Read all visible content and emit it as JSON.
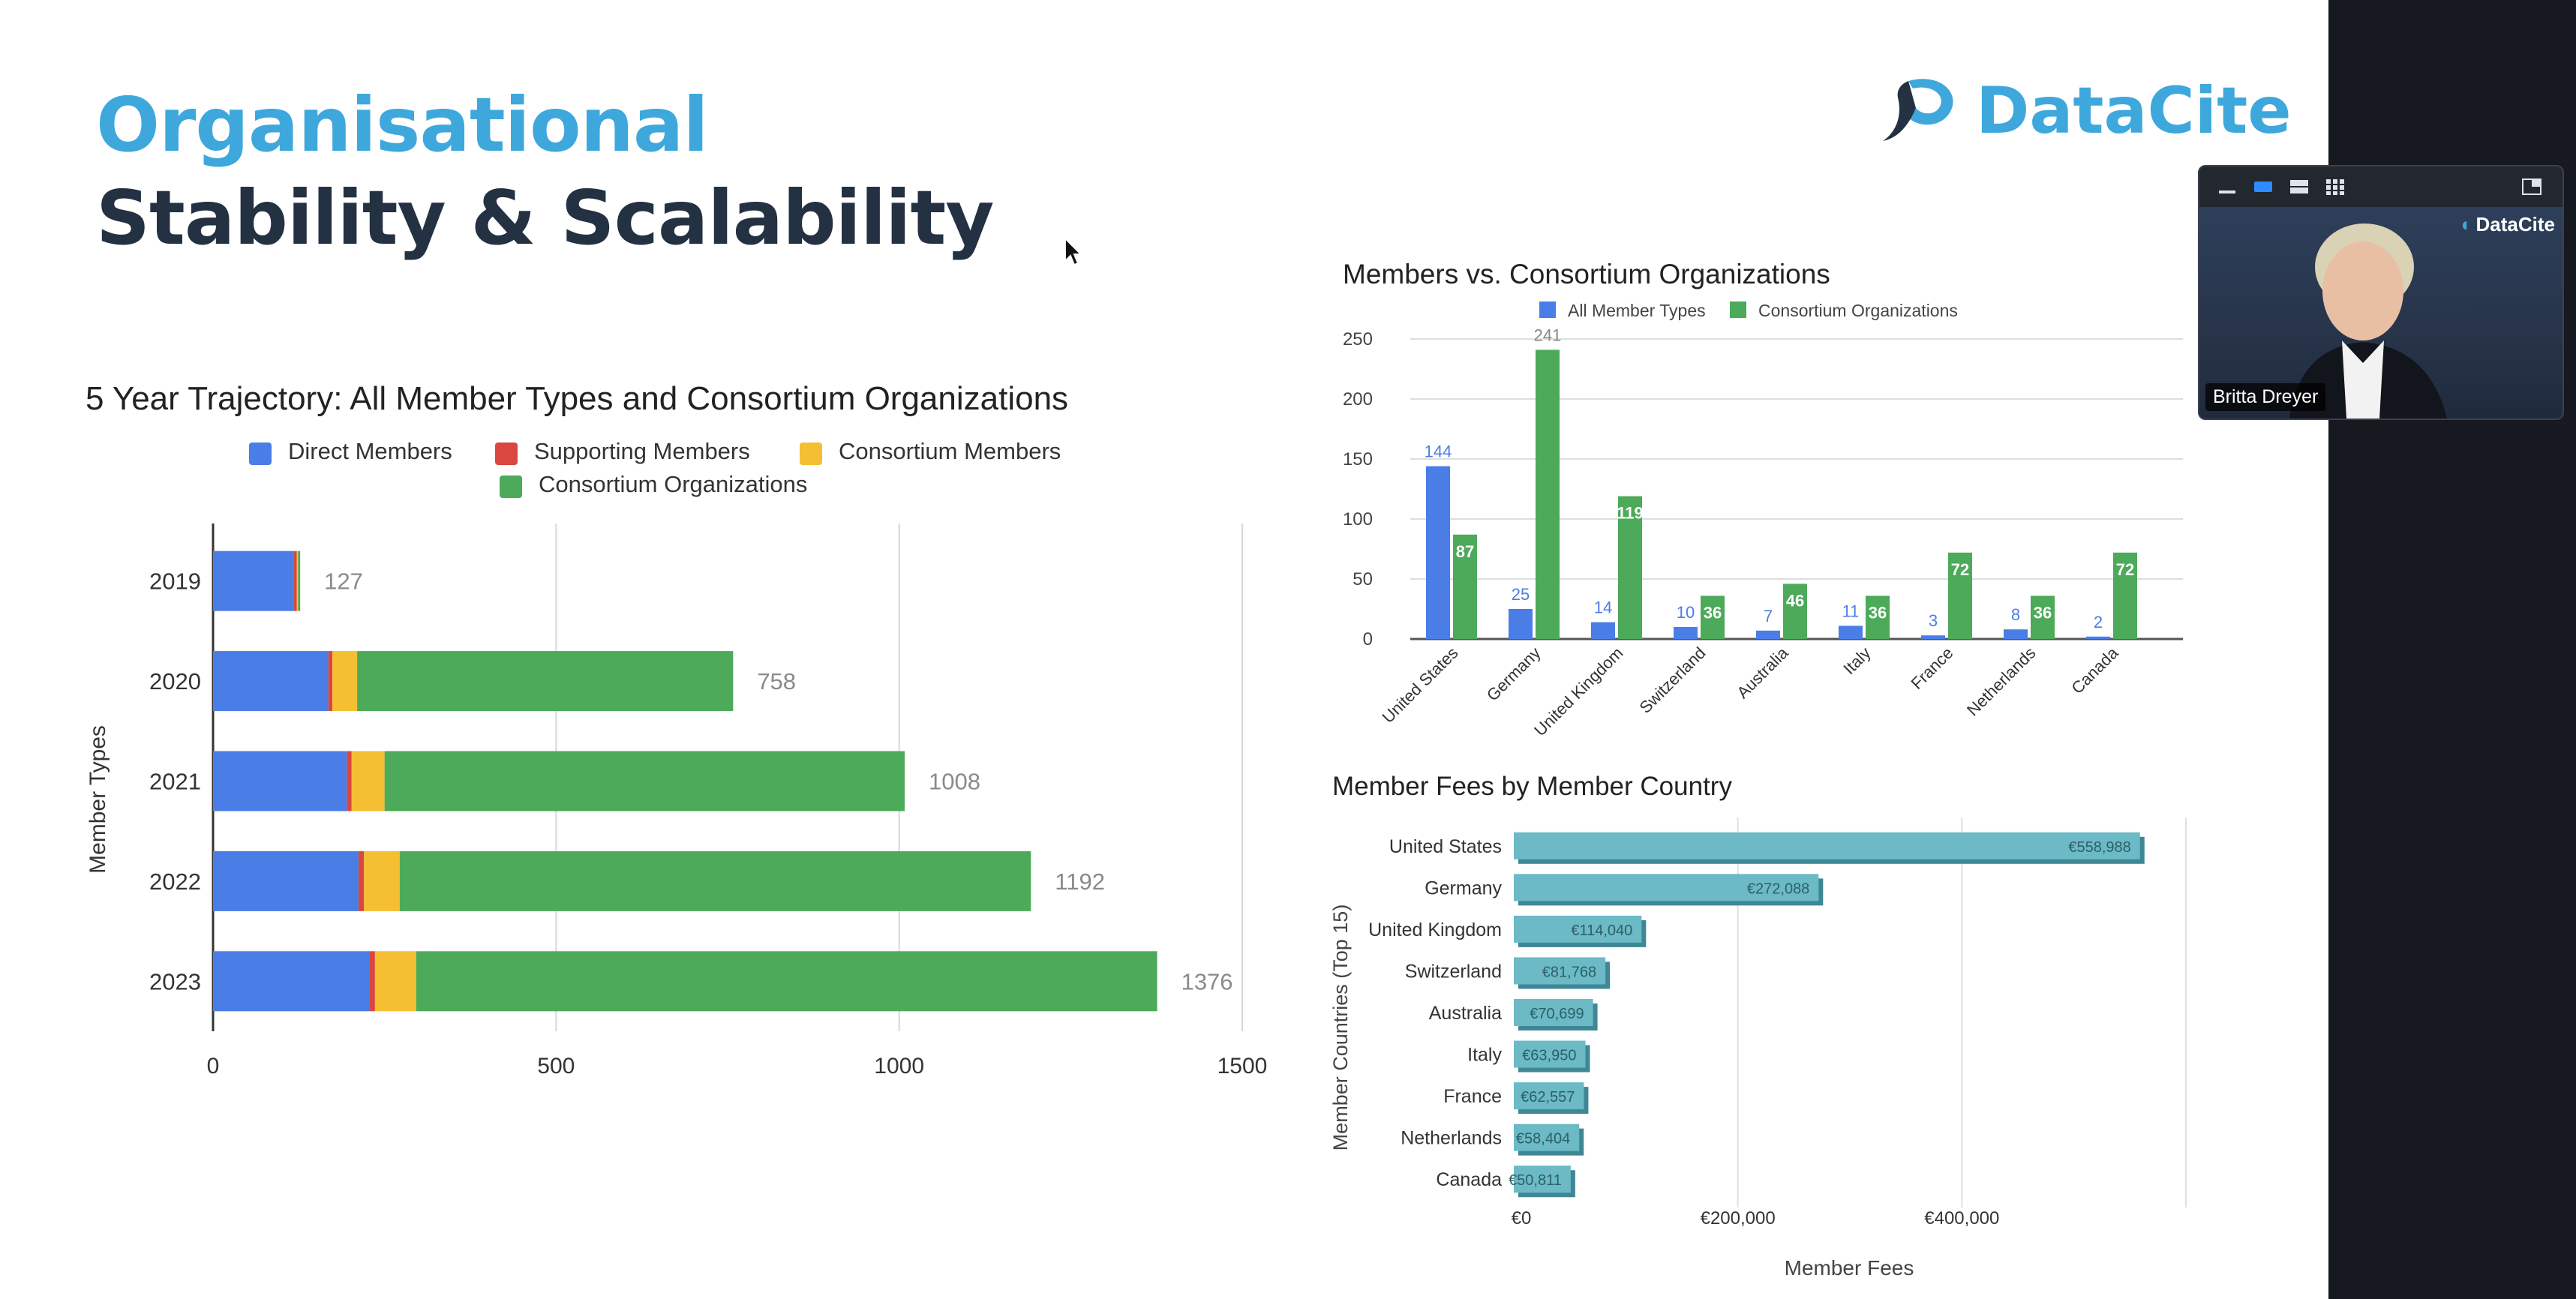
{
  "slide": {
    "title_line1": "Organisational",
    "title_line2": "Stability & Scalability",
    "logo_text": "DataCite",
    "logo_icon": "datacite-logo-icon"
  },
  "video": {
    "participant_name": "Britta Dreyer",
    "logo_text": "DataCite",
    "toolbar_icons": [
      "minimize-icon",
      "speaker-view-icon",
      "strip-view-icon",
      "gallery-view-icon",
      "hide-self-icon"
    ]
  },
  "colors": {
    "title_blue": "#3ea8dc",
    "title_dark": "#243142",
    "direct": "#4a7de6",
    "supporting": "#d9473e",
    "consortium_members": "#f5bf33",
    "consortium_orgs": "#4caa5a",
    "fees_bar": "#6bbac6"
  },
  "chart_data": [
    {
      "type": "bar",
      "orientation": "horizontal",
      "stacked": true,
      "title": "5 Year Trajectory: All Member Types and Consortium Organizations",
      "ylabel": "Member Types",
      "xlabel": "",
      "categories": [
        "2019",
        "2020",
        "2021",
        "2022",
        "2023"
      ],
      "series": [
        {
          "name": "Direct Members",
          "values": [
            118,
            168,
            195,
            212,
            228
          ],
          "color": "#4a7de6"
        },
        {
          "name": "Supporting Members",
          "values": [
            4,
            6,
            7,
            8,
            8
          ],
          "color": "#d9473e"
        },
        {
          "name": "Consortium Members",
          "values": [
            2,
            36,
            48,
            52,
            60
          ],
          "color": "#f5bf33"
        },
        {
          "name": "Consortium Organizations",
          "values": [
            3,
            548,
            758,
            920,
            1080
          ],
          "color": "#4caa5a"
        }
      ],
      "totals": [
        "127",
        "758",
        "1008",
        "1192",
        "1376"
      ],
      "xlim": [
        0,
        1500
      ],
      "xticks": [
        "0",
        "500",
        "1000",
        "1500"
      ],
      "legend_position": "top",
      "grid": true
    },
    {
      "type": "bar",
      "orientation": "vertical",
      "title": "Members vs. Consortium Organizations",
      "categories": [
        "United States",
        "Germany",
        "United Kingdom",
        "Switzerland",
        "Australia",
        "Italy",
        "France",
        "Netherlands",
        "Canada"
      ],
      "series": [
        {
          "name": "All Member Types",
          "values": [
            144,
            25,
            14,
            10,
            7,
            11,
            3,
            8,
            2
          ],
          "labels": [
            "144",
            "25",
            "14",
            "10",
            "7",
            "11",
            "3",
            "8",
            "2"
          ],
          "color": "#4a7de6"
        },
        {
          "name": "Consortium Organizations",
          "values": [
            87,
            241,
            119,
            36,
            46,
            36,
            72,
            36,
            72
          ],
          "labels": [
            "87",
            "241",
            "119",
            "36",
            "46",
            "36",
            "72",
            "36",
            "72"
          ],
          "color": "#4caa5a"
        }
      ],
      "ylim": [
        0,
        260
      ],
      "yticks": [
        "0",
        "50",
        "100",
        "150",
        "200",
        "250"
      ],
      "legend_position": "top",
      "grid": true
    },
    {
      "type": "bar",
      "orientation": "horizontal",
      "title": "Member Fees by Member Country",
      "ylabel": "Member Countries (Top 15)",
      "xlabel": "Member Fees",
      "categories": [
        "United States",
        "Germany",
        "United Kingdom",
        "Switzerland",
        "Australia",
        "Italy",
        "France",
        "Netherlands",
        "Canada"
      ],
      "values": [
        558988,
        272088,
        114040,
        81768,
        70699,
        63950,
        62557,
        58404,
        50811
      ],
      "labels": [
        "€558,988",
        "€272,088",
        "€114,040",
        "€81,768",
        "€70,699",
        "€63,950",
        "€62,557",
        "€58,404",
        "€50,811"
      ],
      "xlim": [
        0,
        600000
      ],
      "xticks": [
        "€0",
        "€200,000",
        "€400,000"
      ],
      "grid": true
    }
  ]
}
